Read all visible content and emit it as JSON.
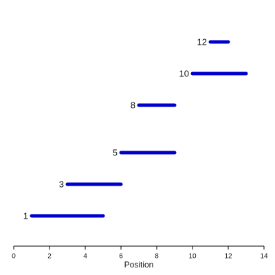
{
  "chart_data": {
    "type": "segment",
    "x_label": "Position",
    "y": [
      1,
      3,
      5,
      8,
      10,
      12
    ],
    "start": [
      1,
      3,
      6,
      7,
      10,
      11
    ],
    "end": [
      5,
      6,
      9,
      9,
      13,
      12
    ],
    "color": "#0000cc",
    "xlim": [
      0,
      14
    ],
    "xticks": [
      0,
      2,
      4,
      6,
      8,
      10,
      12,
      14
    ]
  }
}
